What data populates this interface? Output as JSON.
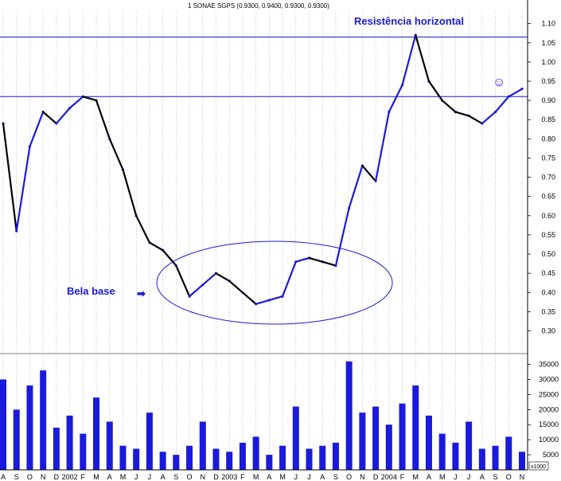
{
  "chart_data": {
    "type": "line",
    "title": "1 SONAE SGPS (0.9300, 0.9400, 0.9300, 0.9300)",
    "price_axis": {
      "ylim": [
        0.27,
        1.12
      ],
      "ticks": [
        "1.10",
        "1.05",
        "1.00",
        "0.95",
        "0.90",
        "0.85",
        "0.80",
        "0.75",
        "0.70",
        "0.65",
        "0.60",
        "0.55",
        "0.50",
        "0.45",
        "0.40",
        "0.35",
        "0.30"
      ]
    },
    "volume_axis": {
      "ylim": [
        0,
        37000
      ],
      "ticks": [
        "35000",
        "30000",
        "25000",
        "20000",
        "15000",
        "10000",
        "5000"
      ],
      "unit_label": "x1000"
    },
    "x_axis": {
      "labels": [
        "A",
        "S",
        "O",
        "N",
        "D",
        "2002",
        "F",
        "M",
        "A",
        "M",
        "J",
        "J",
        "A",
        "S",
        "O",
        "N",
        "D",
        "2003",
        "F",
        "M",
        "A",
        "M",
        "J",
        "J",
        "A",
        "S",
        "O",
        "N",
        "D",
        "2004",
        "F",
        "M",
        "A",
        "M",
        "J",
        "J",
        "A",
        "S",
        "O",
        "N"
      ]
    },
    "price_series": {
      "name": "",
      "x": [
        0,
        1,
        2,
        3,
        4,
        5,
        6,
        7,
        8,
        9,
        10,
        11,
        12,
        13,
        14,
        15,
        16,
        17,
        18,
        19,
        20,
        21,
        22,
        23,
        24,
        25,
        26,
        27,
        28,
        29,
        30,
        31,
        32,
        33,
        34,
        35,
        36,
        37,
        38,
        39
      ],
      "values": [
        0.84,
        0.56,
        0.78,
        0.87,
        0.84,
        0.88,
        0.91,
        0.9,
        0.8,
        0.72,
        0.6,
        0.53,
        0.51,
        0.47,
        0.39,
        0.42,
        0.45,
        0.43,
        0.4,
        0.37,
        0.38,
        0.39,
        0.48,
        0.49,
        0.48,
        0.47,
        0.62,
        0.73,
        0.69,
        0.87,
        0.94,
        1.07,
        0.95,
        0.9,
        0.87,
        0.86,
        0.84,
        0.87,
        0.91,
        0.93
      ]
    },
    "volume_series": {
      "name": "",
      "x": [
        0,
        1,
        2,
        3,
        4,
        5,
        6,
        7,
        8,
        9,
        10,
        11,
        12,
        13,
        14,
        15,
        16,
        17,
        18,
        19,
        20,
        21,
        22,
        23,
        24,
        25,
        26,
        27,
        28,
        29,
        30,
        31,
        32,
        33,
        34,
        35,
        36,
        37,
        38,
        39
      ],
      "values": [
        30000,
        20000,
        28000,
        33000,
        14000,
        18000,
        12000,
        24000,
        16000,
        8000,
        7000,
        19000,
        6000,
        5000,
        8000,
        16000,
        7000,
        6000,
        9000,
        11000,
        5000,
        8000,
        21000,
        7000,
        8000,
        9000,
        36000,
        19000,
        21000,
        15000,
        22000,
        28000,
        18000,
        12000,
        9000,
        16000,
        7000,
        8000,
        11000,
        6000
      ]
    },
    "horizontal_lines": [
      1.065,
      0.91
    ],
    "annotations": {
      "resistance": "Resistência horizontal",
      "base": "Bela base",
      "arrow": "➡",
      "smiley": "☺"
    },
    "colors": {
      "price_up": "#1a1adc",
      "price_down": "#000000",
      "volume": "#1a1adc",
      "grid": "#a0a0a0",
      "line": "#1a1adc"
    }
  }
}
